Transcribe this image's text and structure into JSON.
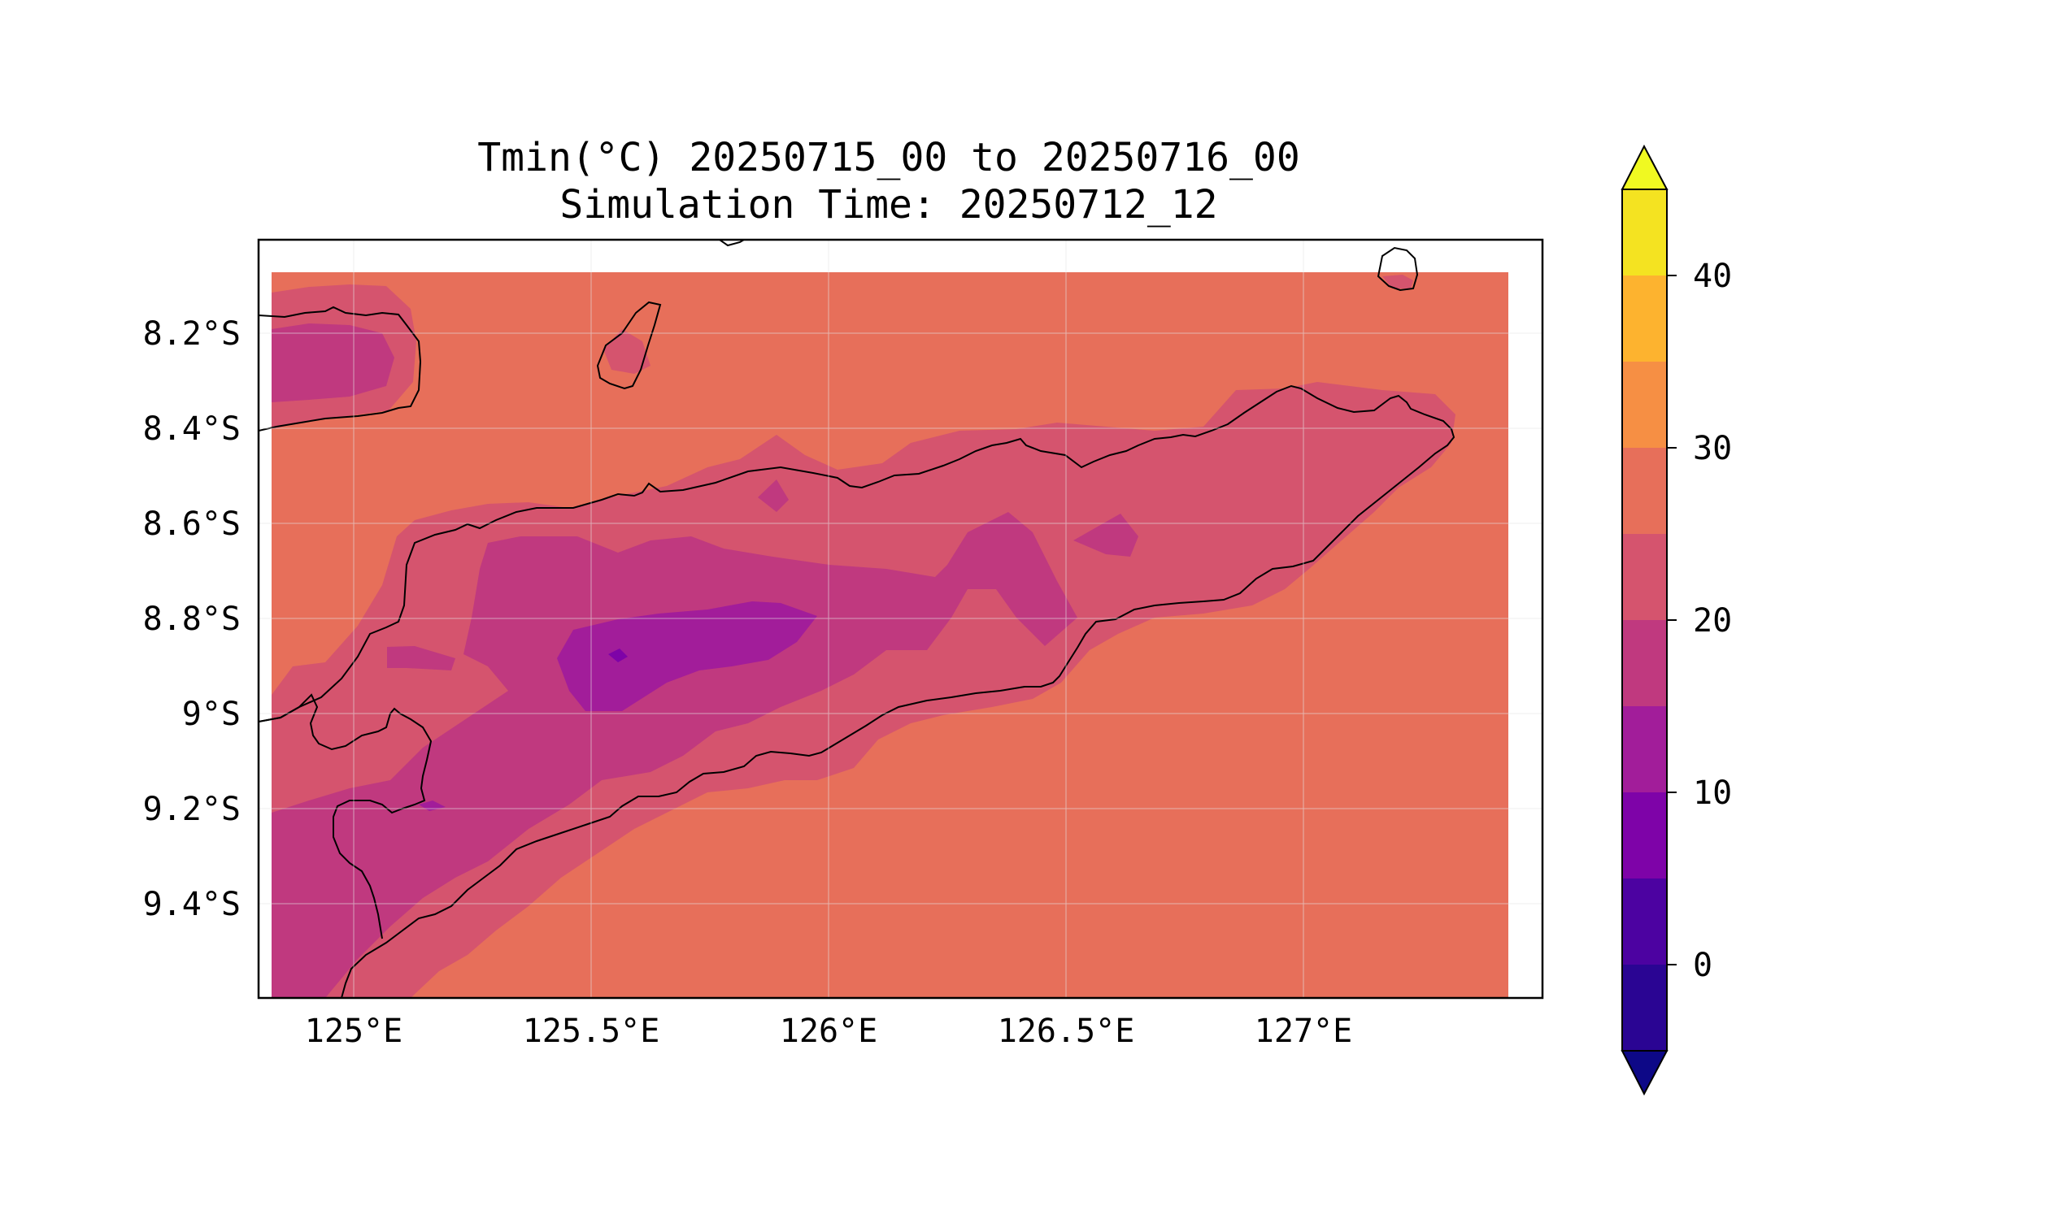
{
  "map": {
    "title_line1": "Tmin(°C) 20250715_00 to 20250716_00",
    "title_line2": "Simulation Time: 20250712_12",
    "x_ticks": [
      "125°E",
      "125.5°E",
      "126°E",
      "126.5°E",
      "127°E"
    ],
    "y_ticks": [
      "8.2°S",
      "8.4°S",
      "8.6°S",
      "8.8°S",
      "9°S",
      "9.2°S",
      "9.4°S"
    ],
    "lon_range": [
      124.8,
      127.5
    ],
    "lat_range": [
      -9.6,
      -8.0
    ],
    "ocean_value_band": "25-30",
    "land_min_band": "10-15",
    "coastline_color": "#000000"
  },
  "colorbar": {
    "tick_labels": [
      "0",
      "10",
      "20",
      "30",
      "40"
    ],
    "levels": [
      -5,
      0,
      5,
      10,
      15,
      20,
      25,
      30,
      35,
      40,
      45
    ],
    "extend": "both",
    "colors": {
      "under": "#0d0887",
      "band_-5_0": "#2a0593",
      "band_0_5": "#4c02a1",
      "band_5_10": "#7e03a8",
      "band_10_15": "#a21d9a",
      "band_15_20": "#c0397f",
      "band_20_25": "#d5546e",
      "band_25_30": "#e76f5a",
      "band_30_35": "#f68f44",
      "band_35_40": "#fdb32f",
      "band_40_45": "#f4e321",
      "over": "#f0f921"
    }
  }
}
